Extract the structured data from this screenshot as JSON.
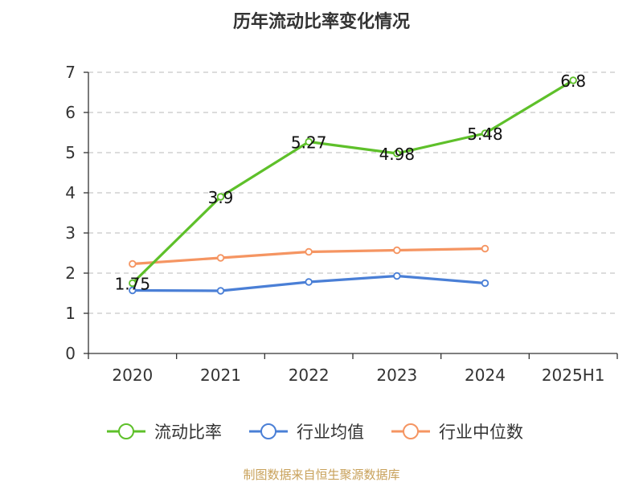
{
  "chart_data": {
    "type": "line",
    "title": "历年流动比率变化情况",
    "categories": [
      "2020",
      "2021",
      "2022",
      "2023",
      "2024",
      "2025H1"
    ],
    "ylim": [
      0,
      7
    ],
    "yticks": [
      "0",
      "1",
      "2",
      "3",
      "4",
      "5",
      "6",
      "7"
    ],
    "grid": true,
    "legend_position": "bottom",
    "series": [
      {
        "name": "流动比率",
        "color": "#5ec02a",
        "values": [
          1.75,
          3.9,
          5.27,
          4.98,
          5.48,
          6.8
        ],
        "labels": [
          "1.75",
          "3.9",
          "5.27",
          "4.98",
          "5.48",
          "6.8"
        ]
      },
      {
        "name": "行业均值",
        "color": "#4a7fd6",
        "values": [
          1.57,
          1.56,
          1.78,
          1.93,
          1.75,
          null
        ]
      },
      {
        "name": "行业中位数",
        "color": "#f59562",
        "values": [
          2.23,
          2.38,
          2.53,
          2.57,
          2.61,
          null
        ]
      }
    ],
    "source": "制图数据来自恒生聚源数据库",
    "source_color": "#c8a15a"
  }
}
